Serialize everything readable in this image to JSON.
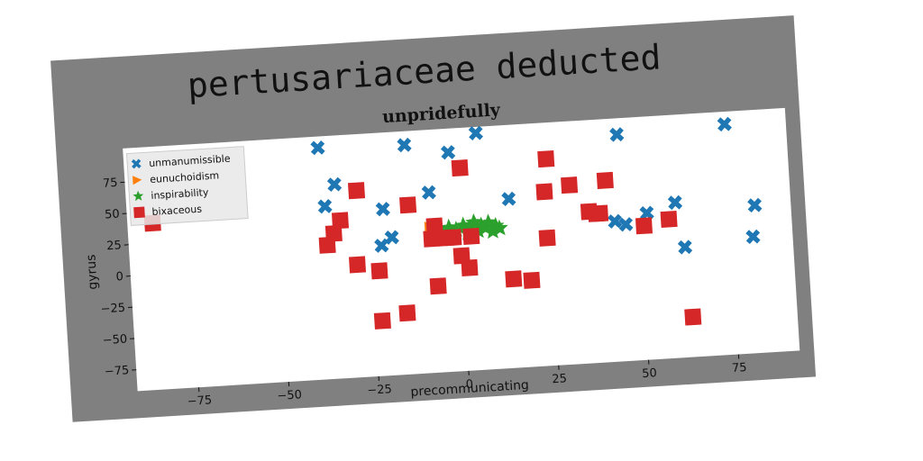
{
  "chart_data": {
    "type": "scatter",
    "title": "pertusariaceae deducted",
    "subtitle": "unpridefully",
    "xlabel": "precommunicating",
    "ylabel": "gyrus",
    "xlim": [
      -92,
      92
    ],
    "ylim": [
      -92,
      102
    ],
    "xticks": [
      -75,
      -50,
      -25,
      0,
      25,
      50,
      75
    ],
    "yticks": [
      -75,
      -50,
      -25,
      0,
      25,
      50,
      75
    ],
    "grid": false,
    "legend_position": "top-left",
    "rotation_deg": -3.5,
    "colors": {
      "figure_background": "#808080",
      "axes_background": "#ffffff",
      "page_background": "#ffffff"
    },
    "series": [
      {
        "name": "unmanumissible",
        "marker": "x",
        "color": "#1f77b4",
        "points": [
          [
            -38,
            93
          ],
          [
            -37,
            46
          ],
          [
            -34,
            63
          ],
          [
            -22,
            12
          ],
          [
            -21,
            41
          ],
          [
            -19,
            18
          ],
          [
            -14,
            91
          ],
          [
            -8,
            52
          ],
          [
            -2,
            83
          ],
          [
            6,
            97
          ],
          [
            14,
            43
          ],
          [
            43,
            20
          ],
          [
            45,
            89
          ],
          [
            46,
            17
          ],
          [
            52,
            25
          ],
          [
            60,
            32
          ],
          [
            62,
            -4
          ],
          [
            75,
            92
          ],
          [
            81,
            1
          ],
          [
            82,
            26
          ]
        ]
      },
      {
        "name": "eunuchoidism",
        "marker": "triangle-right",
        "color": "#ff7f0e",
        "points": [
          [
            -8,
            24
          ],
          [
            -6,
            22
          ]
        ]
      },
      {
        "name": "inspirability",
        "marker": "star",
        "color": "#2ca02c",
        "points": [
          [
            -5,
            20
          ],
          [
            -3,
            23
          ],
          [
            -1,
            21
          ],
          [
            1,
            24
          ],
          [
            2,
            18
          ],
          [
            3,
            22
          ],
          [
            4,
            26
          ],
          [
            5,
            19
          ],
          [
            6,
            23
          ],
          [
            7,
            21
          ],
          [
            8,
            25
          ],
          [
            9,
            18
          ],
          [
            10,
            22
          ],
          [
            11,
            20
          ]
        ]
      },
      {
        "name": "bixaceous",
        "marker": "square",
        "color": "#d62728",
        "points": [
          [
            -85,
            41
          ],
          [
            -37,
            15
          ],
          [
            -35,
            24
          ],
          [
            -33,
            34
          ],
          [
            -29,
            -2
          ],
          [
            -28,
            57
          ],
          [
            -23,
            -8
          ],
          [
            -23,
            -48
          ],
          [
            -16,
            -43
          ],
          [
            -14,
            43
          ],
          [
            -8,
            15
          ],
          [
            -7,
            25
          ],
          [
            -7,
            -23
          ],
          [
            -4,
            15
          ],
          [
            -2,
            15
          ],
          [
            0,
            0
          ],
          [
            1,
            70
          ],
          [
            2,
            -10
          ],
          [
            3,
            15
          ],
          [
            14,
            -21
          ],
          [
            19,
            -23
          ],
          [
            24,
            10
          ],
          [
            24,
            47
          ],
          [
            25,
            73
          ],
          [
            31,
            51
          ],
          [
            36,
            29
          ],
          [
            38,
            27
          ],
          [
            39,
            27
          ],
          [
            41,
            53
          ],
          [
            51,
            15
          ],
          [
            58,
            19
          ],
          [
            63,
            -60
          ]
        ]
      }
    ]
  }
}
